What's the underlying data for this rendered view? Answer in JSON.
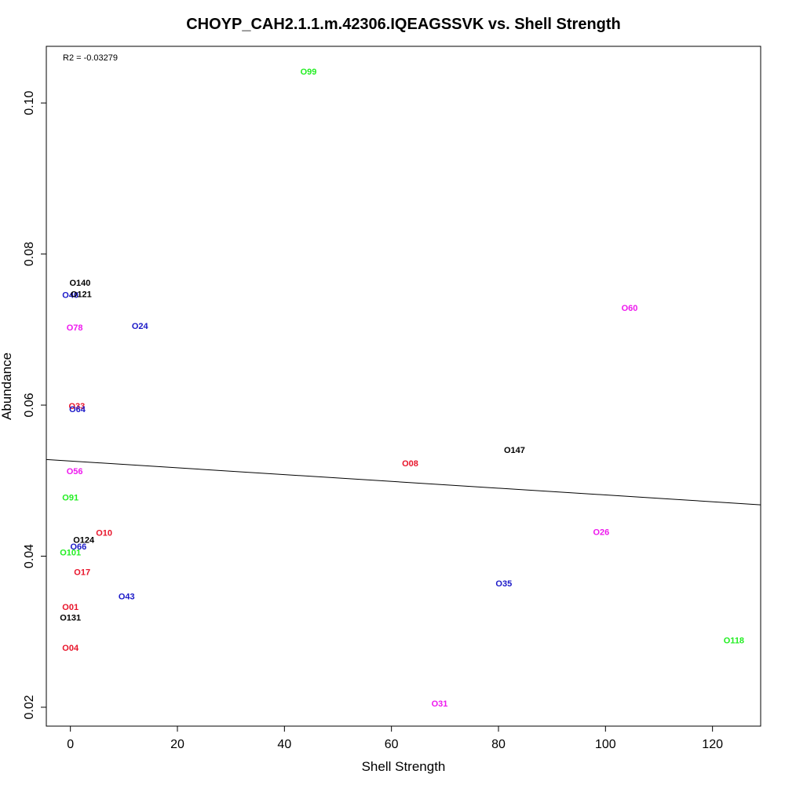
{
  "chart_data": {
    "type": "scatter",
    "title": "CHOYP_CAH2.1.1.m.42306.IQEAGSSVK vs. Shell Strength",
    "xlabel": "Shell Strength",
    "ylabel": "Abundance",
    "xlim": [
      -4.5,
      129
    ],
    "ylim": [
      0.0175,
      0.1075
    ],
    "xticks": [
      0,
      20,
      40,
      60,
      80,
      100,
      120
    ],
    "yticks": [
      0.02,
      0.04,
      0.06,
      0.08,
      0.1
    ],
    "ytick_labels": [
      "0.02",
      "0.04",
      "0.06",
      "0.08",
      "0.10"
    ],
    "grid": false,
    "annotation": "R2 = -0.03279",
    "colors": {
      "red": "#e8142a",
      "magenta": "#ee18ee",
      "green": "#22ee22",
      "blue": "#1a18c8",
      "black": "#000000"
    },
    "regression_line": {
      "x": [
        -4.5,
        129
      ],
      "y": [
        0.0528,
        0.0468
      ]
    },
    "points": [
      {
        "label": "O99",
        "x": 44.5,
        "y": 0.1042,
        "color": "green"
      },
      {
        "label": "O140",
        "x": 1.8,
        "y": 0.0762,
        "color": "black"
      },
      {
        "label": "O40",
        "x": 0.0,
        "y": 0.0746,
        "color": "blue"
      },
      {
        "label": "O121",
        "x": 2.0,
        "y": 0.0747,
        "color": "black"
      },
      {
        "label": "O78",
        "x": 0.8,
        "y": 0.0703,
        "color": "magenta"
      },
      {
        "label": "O24",
        "x": 13.0,
        "y": 0.0705,
        "color": "blue"
      },
      {
        "label": "O60",
        "x": 104.5,
        "y": 0.0729,
        "color": "magenta"
      },
      {
        "label": "O33",
        "x": 1.2,
        "y": 0.0599,
        "color": "red"
      },
      {
        "label": "O64",
        "x": 1.3,
        "y": 0.0595,
        "color": "blue"
      },
      {
        "label": "O147",
        "x": 83.0,
        "y": 0.0541,
        "color": "black"
      },
      {
        "label": "O08",
        "x": 63.5,
        "y": 0.0523,
        "color": "red"
      },
      {
        "label": "O56",
        "x": 0.8,
        "y": 0.0513,
        "color": "magenta"
      },
      {
        "label": "O91",
        "x": 0.0,
        "y": 0.0478,
        "color": "green"
      },
      {
        "label": "O10",
        "x": 6.3,
        "y": 0.0431,
        "color": "red"
      },
      {
        "label": "O26",
        "x": 99.2,
        "y": 0.0432,
        "color": "magenta"
      },
      {
        "label": "O124",
        "x": 2.5,
        "y": 0.0422,
        "color": "black"
      },
      {
        "label": "O66",
        "x": 1.5,
        "y": 0.0413,
        "color": "blue"
      },
      {
        "label": "O101",
        "x": 0.0,
        "y": 0.0405,
        "color": "green"
      },
      {
        "label": "O17",
        "x": 2.2,
        "y": 0.0379,
        "color": "red"
      },
      {
        "label": "O35",
        "x": 81.0,
        "y": 0.0364,
        "color": "blue"
      },
      {
        "label": "O43",
        "x": 10.5,
        "y": 0.0347,
        "color": "blue"
      },
      {
        "label": "O01",
        "x": 0.0,
        "y": 0.0333,
        "color": "red"
      },
      {
        "label": "O131",
        "x": 0.0,
        "y": 0.0319,
        "color": "black"
      },
      {
        "label": "O04",
        "x": 0.0,
        "y": 0.0279,
        "color": "red"
      },
      {
        "label": "O118",
        "x": 124.0,
        "y": 0.0289,
        "color": "green"
      },
      {
        "label": "O31",
        "x": 69.0,
        "y": 0.0205,
        "color": "magenta"
      }
    ]
  }
}
